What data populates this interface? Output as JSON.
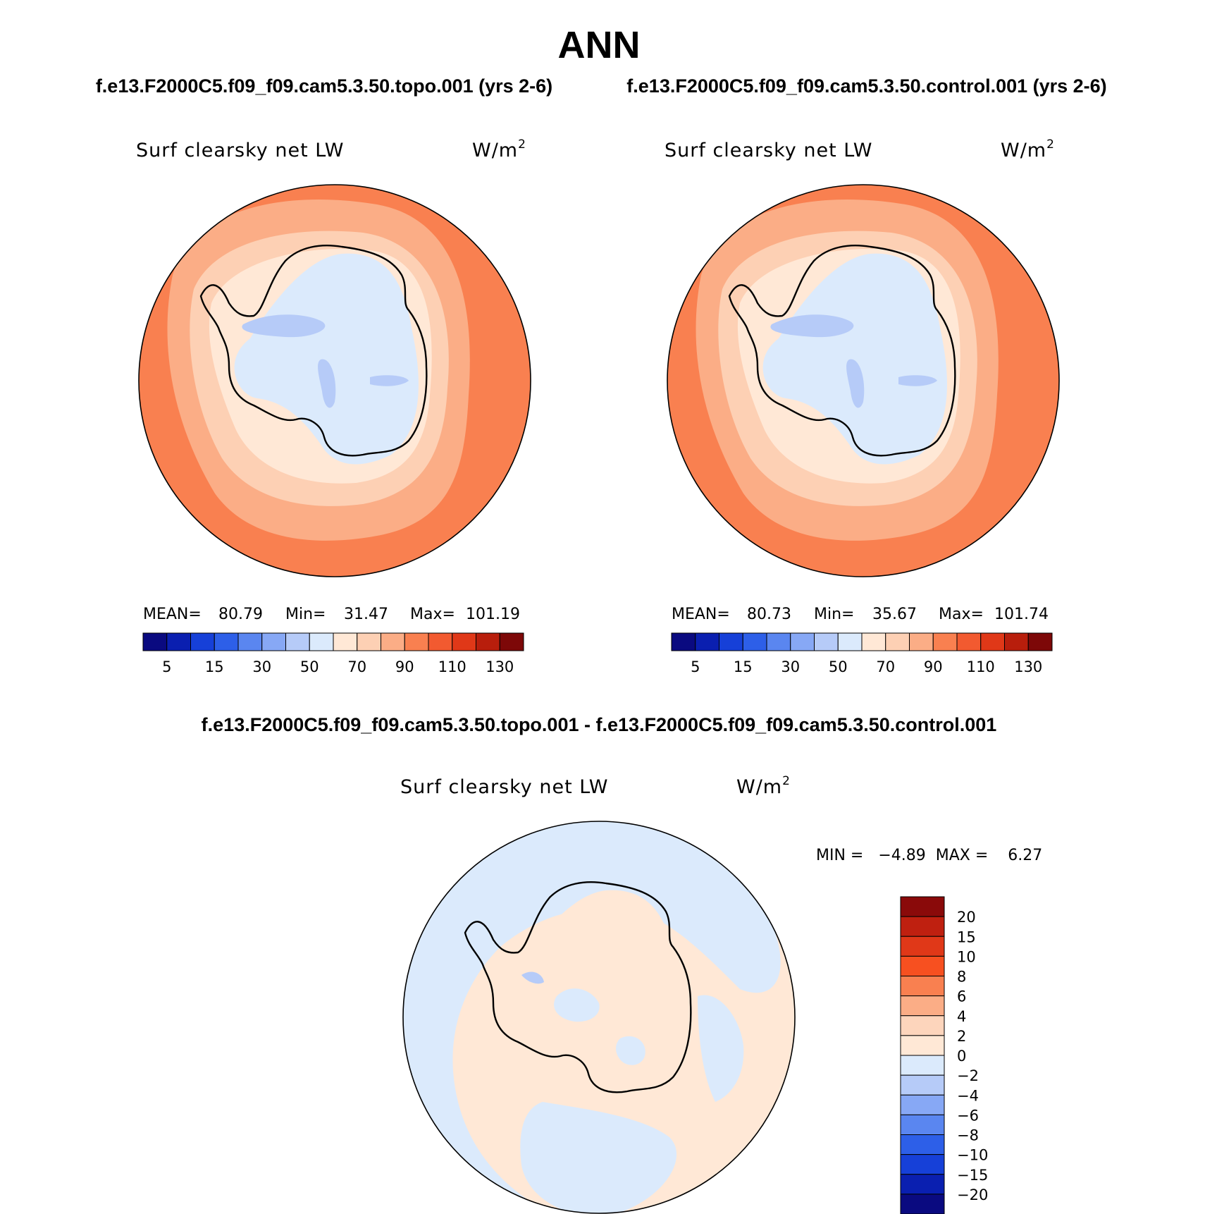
{
  "title": "ANN",
  "panels": [
    {
      "case_title": "f.e13.F2000C5.f09_f09.cam5.3.50.topo.001 (yrs 2-6)",
      "variable": "Surf clearsky net LW",
      "units_base": "W/m",
      "units_exp": "2",
      "stats": {
        "mean_label": "MEAN=",
        "mean": "80.79",
        "min_label": "Min=",
        "min": "31.47",
        "max_label": "Max=",
        "max": "101.19"
      }
    },
    {
      "case_title": "f.e13.F2000C5.f09_f09.cam5.3.50.control.001 (yrs 2-6)",
      "variable": "Surf clearsky net LW",
      "units_base": "W/m",
      "units_exp": "2",
      "stats": {
        "mean_label": "MEAN=",
        "mean": "80.73",
        "min_label": "Min=",
        "min": "35.67",
        "max_label": "Max=",
        "max": "101.74"
      }
    }
  ],
  "field_colorbar": {
    "colors": [
      "#0a0a80",
      "#0a1fb0",
      "#1640d8",
      "#2d5fe8",
      "#5a86f0",
      "#87a8f5",
      "#b6cbf8",
      "#dbeafc",
      "#ffe8d6",
      "#fdd0b4",
      "#fbad86",
      "#f98050",
      "#f25a30",
      "#e03818",
      "#b81e0c",
      "#7d0808"
    ],
    "tick_labels": [
      "5",
      "15",
      "30",
      "50",
      "70",
      "90",
      "110",
      "130"
    ]
  },
  "difference": {
    "title": "f.e13.F2000C5.f09_f09.cam5.3.50.topo.001 - f.e13.F2000C5.f09_f09.cam5.3.50.control.001",
    "variable": "Surf clearsky net LW",
    "units_base": "W/m",
    "units_exp": "2",
    "range_text": "MIN =   −4.89  MAX =    6.27",
    "colorbar": {
      "colors_top_to_bottom": [
        "#8a0a0a",
        "#bf2010",
        "#e03818",
        "#f75020",
        "#f98050",
        "#fbad86",
        "#fdd5bc",
        "#ffe8d6",
        "#dbeafc",
        "#b6cbf8",
        "#87a8f5",
        "#5a86f0",
        "#2d5fe8",
        "#1640d8",
        "#0a1fb0",
        "#0a0a80"
      ],
      "tick_labels": [
        "20",
        "15",
        "10",
        "8",
        "6",
        "4",
        "2",
        "0",
        "−2",
        "−4",
        "−6",
        "−8",
        "−10",
        "−15",
        "−20"
      ]
    }
  },
  "colors": {
    "ocean_field": "#f98050",
    "field_mid": "#fbad86",
    "field_light": "#fdd0b4",
    "field_pale": "#ffe8d6",
    "ice_blue": "#dbeafc",
    "ice_mid": "#b6cbf8",
    "ice_dark": "#87a8f5",
    "diff_pos": "#ffe8d6",
    "diff_neg": "#dbeafc",
    "coast": "#000000"
  }
}
